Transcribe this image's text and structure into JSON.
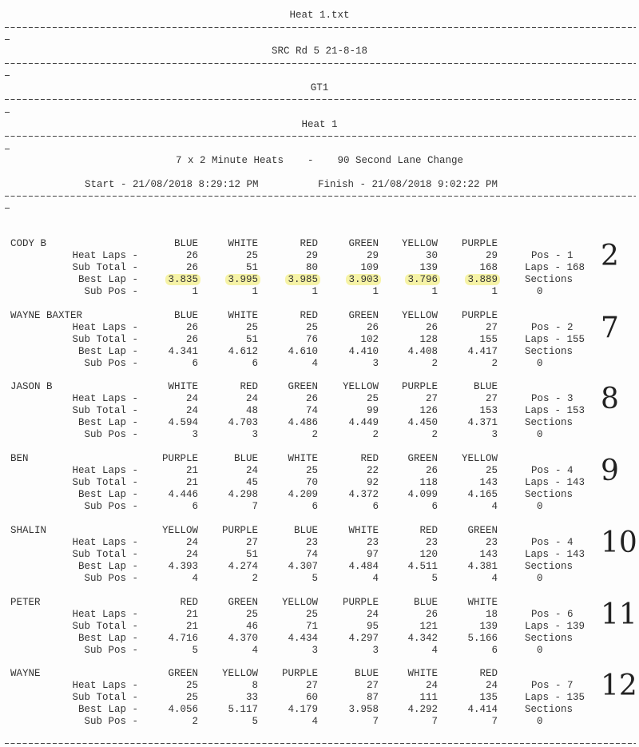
{
  "header": {
    "file_title": "Heat 1.txt",
    "event": "SRC Rd 5 21-8-18",
    "class": "GT1",
    "heat": "Heat 1",
    "format": "7 x 2 Minute Heats    -    90 Second Lane Change",
    "start": "Start - 21/08/2018 8:29:12 PM",
    "finish": "Finish - 21/08/2018 9:02:22 PM",
    "stub": "-"
  },
  "row_labels": [
    "Heat Laps -",
    "Sub Total -",
    "Best Lap -",
    "Sub Pos -"
  ],
  "sections_label": "Sections",
  "highlight_color": "#f6f3a6",
  "drivers": [
    {
      "name": "CODY B",
      "lanes": [
        "BLUE",
        "WHITE",
        "RED",
        "GREEN",
        "YELLOW",
        "PURPLE"
      ],
      "heat_laps": [
        "26",
        "25",
        "29",
        "29",
        "30",
        "29"
      ],
      "sub_total": [
        "26",
        "51",
        "80",
        "109",
        "139",
        "168"
      ],
      "best_lap": [
        "3.835",
        "3.995",
        "3.985",
        "3.903",
        "3.796",
        "3.889"
      ],
      "sub_pos": [
        "1",
        "1",
        "1",
        "1",
        "1",
        "1"
      ],
      "pos": "Pos - 1",
      "laps": "Laps - 168",
      "sections": "0",
      "handwritten": "2",
      "best_lap_highlighted": true
    },
    {
      "name": "WAYNE BAXTER",
      "lanes": [
        "BLUE",
        "WHITE",
        "RED",
        "GREEN",
        "YELLOW",
        "PURPLE"
      ],
      "heat_laps": [
        "26",
        "25",
        "25",
        "26",
        "26",
        "27"
      ],
      "sub_total": [
        "26",
        "51",
        "76",
        "102",
        "128",
        "155"
      ],
      "best_lap": [
        "4.341",
        "4.612",
        "4.610",
        "4.410",
        "4.408",
        "4.417"
      ],
      "sub_pos": [
        "6",
        "6",
        "4",
        "3",
        "2",
        "2"
      ],
      "pos": "Pos - 2",
      "laps": "Laps - 155",
      "sections": "0",
      "handwritten": "7"
    },
    {
      "name": "JASON B",
      "lanes": [
        "WHITE",
        "RED",
        "GREEN",
        "YELLOW",
        "PURPLE",
        "BLUE"
      ],
      "heat_laps": [
        "24",
        "24",
        "26",
        "25",
        "27",
        "27"
      ],
      "sub_total": [
        "24",
        "48",
        "74",
        "99",
        "126",
        "153"
      ],
      "best_lap": [
        "4.594",
        "4.703",
        "4.486",
        "4.449",
        "4.450",
        "4.371"
      ],
      "sub_pos": [
        "3",
        "3",
        "2",
        "2",
        "2",
        "3"
      ],
      "pos": "Pos - 3",
      "laps": "Laps - 153",
      "sections": "0",
      "handwritten": "8"
    },
    {
      "name": "BEN",
      "lanes": [
        "PURPLE",
        "BLUE",
        "WHITE",
        "RED",
        "GREEN",
        "YELLOW"
      ],
      "heat_laps": [
        "21",
        "24",
        "25",
        "22",
        "26",
        "25"
      ],
      "sub_total": [
        "21",
        "45",
        "70",
        "92",
        "118",
        "143"
      ],
      "best_lap": [
        "4.446",
        "4.298",
        "4.209",
        "4.372",
        "4.099",
        "4.165"
      ],
      "sub_pos": [
        "6",
        "7",
        "6",
        "6",
        "6",
        "4"
      ],
      "pos": "Pos - 4",
      "laps": "Laps - 143",
      "sections": "0",
      "handwritten": "9"
    },
    {
      "name": "SHALIN",
      "lanes": [
        "YELLOW",
        "PURPLE",
        "BLUE",
        "WHITE",
        "RED",
        "GREEN"
      ],
      "heat_laps": [
        "24",
        "27",
        "23",
        "23",
        "23",
        "23"
      ],
      "sub_total": [
        "24",
        "51",
        "74",
        "97",
        "120",
        "143"
      ],
      "best_lap": [
        "4.393",
        "4.274",
        "4.307",
        "4.484",
        "4.511",
        "4.381"
      ],
      "sub_pos": [
        "4",
        "2",
        "5",
        "4",
        "5",
        "4"
      ],
      "pos": "Pos - 4",
      "laps": "Laps - 143",
      "sections": "0",
      "handwritten": "10"
    },
    {
      "name": "PETER",
      "lanes": [
        "RED",
        "GREEN",
        "YELLOW",
        "PURPLE",
        "BLUE",
        "WHITE"
      ],
      "heat_laps": [
        "21",
        "25",
        "25",
        "24",
        "26",
        "18"
      ],
      "sub_total": [
        "21",
        "46",
        "71",
        "95",
        "121",
        "139"
      ],
      "best_lap": [
        "4.716",
        "4.370",
        "4.434",
        "4.297",
        "4.342",
        "5.166"
      ],
      "sub_pos": [
        "5",
        "4",
        "3",
        "3",
        "4",
        "6"
      ],
      "pos": "Pos - 6",
      "laps": "Laps - 139",
      "sections": "0",
      "handwritten": "11"
    },
    {
      "name": "WAYNE",
      "lanes": [
        "GREEN",
        "YELLOW",
        "PURPLE",
        "BLUE",
        "WHITE",
        "RED"
      ],
      "heat_laps": [
        "25",
        "8",
        "27",
        "27",
        "24",
        "24"
      ],
      "sub_total": [
        "25",
        "33",
        "60",
        "87",
        "111",
        "135"
      ],
      "best_lap": [
        "4.056",
        "5.117",
        "4.179",
        "3.958",
        "4.292",
        "4.414"
      ],
      "sub_pos": [
        "2",
        "5",
        "4",
        "7",
        "7",
        "7"
      ],
      "pos": "Pos - 7",
      "laps": "Laps - 135",
      "sections": "0",
      "handwritten": "12"
    }
  ]
}
